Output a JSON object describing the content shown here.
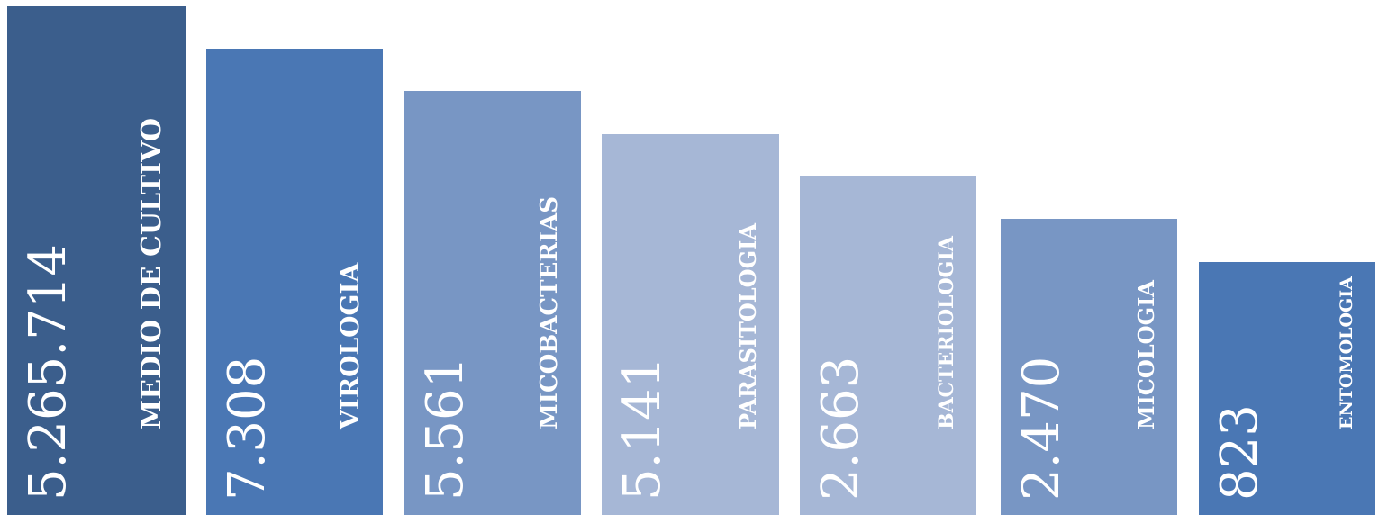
{
  "chart_data": {
    "type": "bar",
    "categories": [
      "MEDIO DE CULTIVO",
      "VIROLOGIA",
      "MICOBACTERIAS",
      "PARASITOLOGIA",
      "BACTERIOLOGIA",
      "MICOLOGIA",
      "ENTOMOLOGIA"
    ],
    "value_labels": [
      "5.265.714",
      "7.308",
      "5.561",
      "5.141",
      "2.663",
      "2.470",
      "823"
    ],
    "values": [
      5265714,
      7308,
      5561,
      5141,
      2663,
      2470,
      823
    ],
    "colors": [
      "#3b5e8c",
      "#4a77b4",
      "#7896c4",
      "#a6b7d6",
      "#a6b7d6",
      "#7896c4",
      "#4a77b4"
    ]
  }
}
